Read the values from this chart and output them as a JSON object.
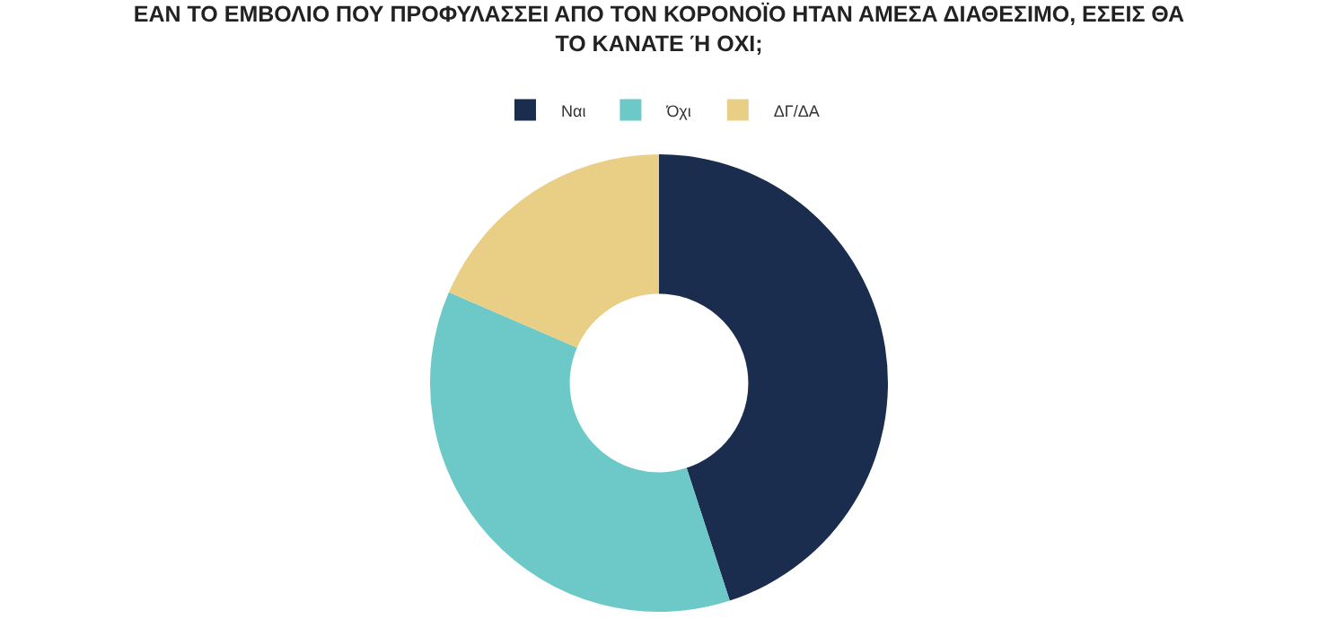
{
  "chart_data": {
    "type": "donut",
    "title": "ΕΑΝ ΤΟ ΕΜΒΟΛΙΟ ΠΟΥ ΠΡΟΦΥΛΑΣΣΕΙ ΑΠΟ ΤΟΝ ΚΟΡΟΝΟΪΟ ΗΤΑΝ ΑΜΕΣΑ ΔΙΑΘΕΣΙΜΟ, ΕΣΕΙΣ ΘΑ ΤΟ ΚΑΝΑΤΕ Ή ΟΧΙ;",
    "categories": [
      "Ναι",
      "Όχι",
      "ΔΓ/ΔΑ"
    ],
    "values": [
      45,
      36.5,
      18.5
    ],
    "colors": [
      "#1b2d4f",
      "#6dc8c8",
      "#e9cf85"
    ],
    "legend": "top"
  }
}
